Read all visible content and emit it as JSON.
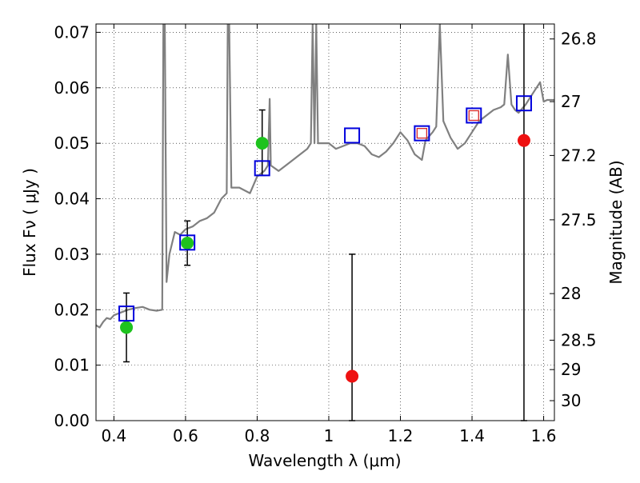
{
  "chart_data": {
    "type": "scatter",
    "xlabel": "Wavelength  λ (μm)",
    "ylabel": "Flux  Fν  ( μJy )",
    "ylabel_right": "Magnitude (AB)",
    "xlim": [
      0.35,
      1.63
    ],
    "ylim": [
      0.0,
      0.0715
    ],
    "grid": true,
    "x_ticks": [
      0.4,
      0.6,
      0.8,
      1.0,
      1.2,
      1.4,
      1.6
    ],
    "x_tick_labels": [
      "0.4",
      "0.6",
      "0.8",
      "1",
      "1.2",
      "1.4",
      "1.6"
    ],
    "y_ticks": [
      0.0,
      0.01,
      0.02,
      0.03,
      0.04,
      0.05,
      0.06,
      0.07
    ],
    "y_tick_labels": [
      "0.00",
      "0.01",
      "0.02",
      "0.03",
      "0.04",
      "0.05",
      "0.06",
      "0.07"
    ],
    "right_ticks": [
      {
        "flux": 0.0688,
        "label": "26.8"
      },
      {
        "flux": 0.0575,
        "label": "27"
      },
      {
        "flux": 0.0478,
        "label": "27.2"
      },
      {
        "flux": 0.0362,
        "label": "27.5"
      },
      {
        "flux": 0.0229,
        "label": "28"
      },
      {
        "flux": 0.0145,
        "label": "28.5"
      },
      {
        "flux": 0.0092,
        "label": "29"
      },
      {
        "flux": 0.0036,
        "label": "30"
      }
    ],
    "colors": {
      "model_spectrum": "#808080",
      "detections": "#1ec31e",
      "upper_limits": "#ee1111",
      "model_photometry": "#0000dd",
      "inner_square": "#d62728",
      "errorbar": "#000000"
    },
    "series": [
      {
        "kind": "spectrum",
        "points": [
          [
            0.35,
            0.0172
          ],
          [
            0.36,
            0.0168
          ],
          [
            0.37,
            0.0178
          ],
          [
            0.38,
            0.0185
          ],
          [
            0.39,
            0.0183
          ],
          [
            0.4,
            0.019
          ],
          [
            0.42,
            0.0195
          ],
          [
            0.44,
            0.02
          ],
          [
            0.46,
            0.0203
          ],
          [
            0.48,
            0.0205
          ],
          [
            0.5,
            0.02
          ],
          [
            0.52,
            0.0198
          ],
          [
            0.535,
            0.02
          ],
          [
            0.538,
            0.0715
          ],
          [
            0.542,
            0.0715
          ],
          [
            0.547,
            0.025
          ],
          [
            0.555,
            0.03
          ],
          [
            0.57,
            0.034
          ],
          [
            0.585,
            0.0335
          ],
          [
            0.6,
            0.0345
          ],
          [
            0.62,
            0.035
          ],
          [
            0.64,
            0.036
          ],
          [
            0.66,
            0.0365
          ],
          [
            0.68,
            0.0375
          ],
          [
            0.7,
            0.04
          ],
          [
            0.715,
            0.041
          ],
          [
            0.718,
            0.0715
          ],
          [
            0.722,
            0.0715
          ],
          [
            0.728,
            0.042
          ],
          [
            0.75,
            0.042
          ],
          [
            0.78,
            0.041
          ],
          [
            0.8,
            0.044
          ],
          [
            0.82,
            0.045
          ],
          [
            0.83,
            0.046
          ],
          [
            0.835,
            0.058
          ],
          [
            0.838,
            0.046
          ],
          [
            0.86,
            0.045
          ],
          [
            0.88,
            0.046
          ],
          [
            0.9,
            0.047
          ],
          [
            0.92,
            0.048
          ],
          [
            0.94,
            0.049
          ],
          [
            0.95,
            0.05
          ],
          [
            0.955,
            0.0715
          ],
          [
            0.96,
            0.05
          ],
          [
            0.965,
            0.0715
          ],
          [
            0.97,
            0.05
          ],
          [
            0.98,
            0.05
          ],
          [
            1.0,
            0.05
          ],
          [
            1.02,
            0.049
          ],
          [
            1.04,
            0.0495
          ],
          [
            1.06,
            0.05
          ],
          [
            1.08,
            0.05
          ],
          [
            1.1,
            0.0495
          ],
          [
            1.12,
            0.048
          ],
          [
            1.14,
            0.0475
          ],
          [
            1.16,
            0.0485
          ],
          [
            1.18,
            0.05
          ],
          [
            1.2,
            0.052
          ],
          [
            1.22,
            0.0505
          ],
          [
            1.24,
            0.048
          ],
          [
            1.26,
            0.047
          ],
          [
            1.27,
            0.0505
          ],
          [
            1.29,
            0.052
          ],
          [
            1.3,
            0.053
          ],
          [
            1.31,
            0.0715
          ],
          [
            1.32,
            0.054
          ],
          [
            1.34,
            0.051
          ],
          [
            1.36,
            0.049
          ],
          [
            1.38,
            0.05
          ],
          [
            1.4,
            0.052
          ],
          [
            1.42,
            0.054
          ],
          [
            1.44,
            0.055
          ],
          [
            1.46,
            0.056
          ],
          [
            1.48,
            0.0565
          ],
          [
            1.49,
            0.057
          ],
          [
            1.5,
            0.066
          ],
          [
            1.51,
            0.057
          ],
          [
            1.52,
            0.056
          ],
          [
            1.53,
            0.0555
          ],
          [
            1.55,
            0.057
          ],
          [
            1.57,
            0.059
          ],
          [
            1.59,
            0.061
          ],
          [
            1.6,
            0.0575
          ],
          [
            1.61,
            0.0578
          ],
          [
            1.63,
            0.0578
          ]
        ]
      },
      {
        "kind": "detections",
        "points": [
          {
            "x": 0.435,
            "y": 0.0168,
            "yerr_low": 0.0106,
            "yerr_high": 0.023
          },
          {
            "x": 0.605,
            "y": 0.032,
            "yerr_low": 0.028,
            "yerr_high": 0.036
          },
          {
            "x": 0.814,
            "y": 0.05,
            "yerr_low": 0.0442,
            "yerr_high": 0.056
          }
        ]
      },
      {
        "kind": "upper_limits",
        "points": [
          {
            "x": 1.065,
            "y": 0.008,
            "yerr_low": 0.0,
            "yerr_high": 0.03
          },
          {
            "x": 1.545,
            "y": 0.0505,
            "yerr_low": 0.0,
            "yerr_high": 0.0715
          }
        ]
      },
      {
        "kind": "model_photometry",
        "points": [
          {
            "x": 0.435,
            "y": 0.0193
          },
          {
            "x": 0.605,
            "y": 0.0321
          },
          {
            "x": 0.814,
            "y": 0.0455
          },
          {
            "x": 1.065,
            "y": 0.0514
          },
          {
            "x": 1.26,
            "y": 0.0518
          },
          {
            "x": 1.405,
            "y": 0.055
          },
          {
            "x": 1.545,
            "y": 0.0572
          }
        ]
      },
      {
        "kind": "inner_squares",
        "points": [
          {
            "x": 1.26,
            "y": 0.0518
          },
          {
            "x": 1.405,
            "y": 0.055
          }
        ]
      }
    ]
  }
}
